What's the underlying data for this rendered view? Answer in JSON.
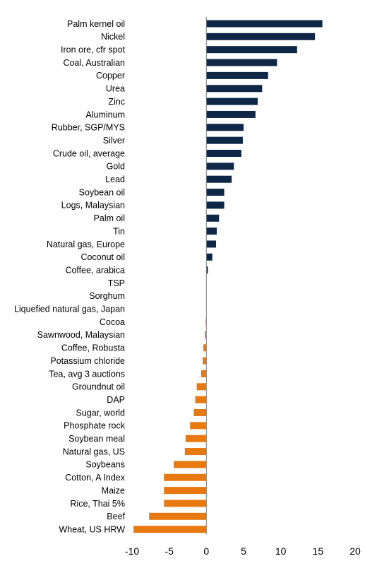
{
  "chart_data": {
    "type": "bar",
    "orientation": "horizontal",
    "categories": [
      "Palm kernel oil",
      "Nickel",
      "Iron ore, cfr spot",
      "Coal, Australian",
      "Copper",
      "Urea",
      "Zinc",
      "Aluminum",
      "Rubber, SGP/MYS",
      "Silver",
      "Crude oil, average",
      "Gold",
      "Lead",
      "Soybean oil",
      "Logs, Malaysian",
      "Palm oil",
      "Tin",
      "Natural gas, Europe",
      "Coconut oil",
      "Coffee, arabica",
      "TSP",
      "Sorghum",
      "Liquefied natural gas, Japan",
      "Cocoa",
      "Sawnwood, Malaysian",
      "Coffee, Robusta",
      "Potassium chloride",
      "Tea, avg 3 auctions",
      "Groundnut oil",
      "DAP",
      "Sugar, world",
      "Phosphate rock",
      "Soybean meal",
      "Natural gas, US",
      "Soybeans",
      "Cotton, A Index",
      "Maize",
      "Rice, Thai 5%",
      "Beef",
      "Wheat, US HRW"
    ],
    "values": [
      15.6,
      14.6,
      12.2,
      9.5,
      8.3,
      7.5,
      6.9,
      6.6,
      5.0,
      4.9,
      4.7,
      3.7,
      3.4,
      2.4,
      2.4,
      1.7,
      1.4,
      1.3,
      0.8,
      0.2,
      0.0,
      0.0,
      0.0,
      -0.1,
      -0.2,
      -0.4,
      -0.5,
      -0.7,
      -1.3,
      -1.5,
      -1.7,
      -2.2,
      -2.8,
      -2.9,
      -4.4,
      -5.7,
      -5.7,
      -5.7,
      -7.7,
      -9.8
    ],
    "xlim": [
      -10,
      20
    ],
    "xticks": [
      "-10",
      "-5",
      "0",
      "5",
      "10",
      "15",
      "20"
    ],
    "colors": {
      "positive": "#0f2746",
      "negative": "#e8790f",
      "axis": "#7f7f7f"
    },
    "grid": false,
    "title": "",
    "xlabel": "",
    "ylabel": ""
  }
}
